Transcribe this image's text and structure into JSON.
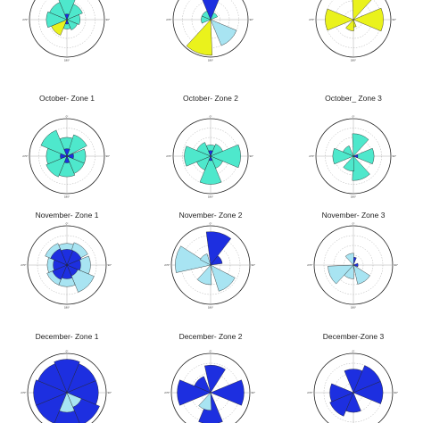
{
  "colors": {
    "teal": "#4ee8cc",
    "yellow": "#eaf21c",
    "light_blue": "#a8e4f2",
    "dark_blue": "#1d2fe0",
    "outline": "#222222",
    "grid": "#9a9a9a"
  },
  "direction_labels": {
    "north": "0°",
    "east": "90°",
    "south": "180°",
    "west": "270°"
  },
  "chart_data": [
    {
      "type": "rose",
      "title": "",
      "bins": [
        {
          "dir": 0,
          "r": 0.95,
          "color": "teal"
        },
        {
          "dir": 45,
          "r": 0.45,
          "color": "teal"
        },
        {
          "dir": 90,
          "r": 0.35,
          "color": "teal"
        },
        {
          "dir": 135,
          "r": 0.3,
          "color": "teal"
        },
        {
          "dir": 180,
          "r": 0.25,
          "color": "teal"
        },
        {
          "dir": 225,
          "r": 0.45,
          "color": "yellow"
        },
        {
          "dir": 270,
          "r": 0.55,
          "color": "teal"
        },
        {
          "dir": 315,
          "r": 0.5,
          "color": "teal"
        },
        {
          "dir": 0,
          "r": 0.15,
          "color": "dark_blue"
        },
        {
          "dir": 180,
          "r": 0.12,
          "color": "dark_blue"
        }
      ]
    },
    {
      "type": "rose",
      "title": "",
      "bins": [
        {
          "dir": 0,
          "r": 0.9,
          "color": "dark_blue"
        },
        {
          "dir": 45,
          "r": 0.2,
          "color": "teal"
        },
        {
          "dir": 135,
          "r": 0.75,
          "color": "light_blue"
        },
        {
          "dir": 200,
          "r": 0.95,
          "color": "yellow"
        },
        {
          "dir": 270,
          "r": 0.25,
          "color": "teal"
        },
        {
          "dir": 315,
          "r": 0.25,
          "color": "teal"
        }
      ]
    },
    {
      "type": "rose",
      "title": "",
      "bins": [
        {
          "dir": 20,
          "r": 0.95,
          "color": "yellow"
        },
        {
          "dir": 90,
          "r": 0.8,
          "color": "yellow"
        },
        {
          "dir": 180,
          "r": 0.2,
          "color": "yellow"
        },
        {
          "dir": 200,
          "r": 0.3,
          "color": "yellow"
        },
        {
          "dir": 270,
          "r": 0.75,
          "color": "yellow"
        }
      ]
    },
    {
      "type": "rose",
      "title": "October- Zone 1",
      "bins": [
        {
          "dir": 0,
          "r": 0.5,
          "color": "teal"
        },
        {
          "dir": 40,
          "r": 0.6,
          "color": "teal"
        },
        {
          "dir": 90,
          "r": 0.5,
          "color": "teal"
        },
        {
          "dir": 135,
          "r": 0.5,
          "color": "teal"
        },
        {
          "dir": 180,
          "r": 0.55,
          "color": "teal"
        },
        {
          "dir": 225,
          "r": 0.6,
          "color": "teal"
        },
        {
          "dir": 270,
          "r": 0.55,
          "color": "teal"
        },
        {
          "dir": 315,
          "r": 0.75,
          "color": "teal"
        },
        {
          "dir": 0,
          "r": 0.2,
          "color": "dark_blue"
        },
        {
          "dir": 90,
          "r": 0.18,
          "color": "dark_blue"
        },
        {
          "dir": 180,
          "r": 0.18,
          "color": "dark_blue"
        },
        {
          "dir": 270,
          "r": 0.18,
          "color": "dark_blue"
        }
      ]
    },
    {
      "type": "rose",
      "title": "October- Zone 2",
      "bins": [
        {
          "dir": 0,
          "r": 0.3,
          "color": "teal"
        },
        {
          "dir": 45,
          "r": 0.35,
          "color": "teal"
        },
        {
          "dir": 90,
          "r": 0.8,
          "color": "teal"
        },
        {
          "dir": 135,
          "r": 0.35,
          "color": "teal"
        },
        {
          "dir": 180,
          "r": 0.75,
          "color": "teal"
        },
        {
          "dir": 225,
          "r": 0.4,
          "color": "teal"
        },
        {
          "dir": 270,
          "r": 0.7,
          "color": "teal"
        },
        {
          "dir": 315,
          "r": 0.4,
          "color": "teal"
        },
        {
          "dir": 0,
          "r": 0.15,
          "color": "dark_blue"
        },
        {
          "dir": 180,
          "r": 0.12,
          "color": "dark_blue"
        }
      ]
    },
    {
      "type": "rose",
      "title": "October_ Zone 3",
      "bins": [
        {
          "dir": 20,
          "r": 0.6,
          "color": "teal"
        },
        {
          "dir": 90,
          "r": 0.55,
          "color": "teal"
        },
        {
          "dir": 160,
          "r": 0.65,
          "color": "teal"
        },
        {
          "dir": 200,
          "r": 0.4,
          "color": "teal"
        },
        {
          "dir": 270,
          "r": 0.55,
          "color": "teal"
        },
        {
          "dir": 315,
          "r": 0.3,
          "color": "teal"
        },
        {
          "dir": 90,
          "r": 0.12,
          "color": "dark_blue"
        }
      ]
    },
    {
      "type": "rose",
      "title": "November- Zone 1",
      "bins": [
        {
          "dir": 0,
          "r": 0.55,
          "color": "light_blue"
        },
        {
          "dir": 40,
          "r": 0.6,
          "color": "light_blue"
        },
        {
          "dir": 90,
          "r": 0.6,
          "color": "light_blue"
        },
        {
          "dir": 135,
          "r": 0.75,
          "color": "light_blue"
        },
        {
          "dir": 180,
          "r": 0.55,
          "color": "light_blue"
        },
        {
          "dir": 225,
          "r": 0.55,
          "color": "light_blue"
        },
        {
          "dir": 270,
          "r": 0.5,
          "color": "light_blue"
        },
        {
          "dir": 315,
          "r": 0.6,
          "color": "light_blue"
        },
        {
          "dir": 0,
          "r": 0.4,
          "color": "dark_blue"
        },
        {
          "dir": 45,
          "r": 0.4,
          "color": "dark_blue"
        },
        {
          "dir": 90,
          "r": 0.35,
          "color": "dark_blue"
        },
        {
          "dir": 135,
          "r": 0.3,
          "color": "dark_blue"
        },
        {
          "dir": 180,
          "r": 0.35,
          "color": "dark_blue"
        },
        {
          "dir": 225,
          "r": 0.4,
          "color": "dark_blue"
        },
        {
          "dir": 270,
          "r": 0.35,
          "color": "dark_blue"
        },
        {
          "dir": 315,
          "r": 0.45,
          "color": "dark_blue"
        }
      ]
    },
    {
      "type": "rose",
      "title": "November- Zone 2",
      "bins": [
        {
          "dir": 15,
          "r": 0.85,
          "color": "dark_blue"
        },
        {
          "dir": 60,
          "r": 0.3,
          "color": "dark_blue"
        },
        {
          "dir": 140,
          "r": 0.7,
          "color": "light_blue"
        },
        {
          "dir": 200,
          "r": 0.5,
          "color": "light_blue"
        },
        {
          "dir": 280,
          "r": 0.9,
          "color": "light_blue"
        },
        {
          "dir": 320,
          "r": 0.3,
          "color": "light_blue"
        }
      ]
    },
    {
      "type": "rose",
      "title": "November- Zone 3",
      "bins": [
        {
          "dir": 0,
          "r": 0.2,
          "color": "dark_blue"
        },
        {
          "dir": 90,
          "r": 0.12,
          "color": "dark_blue"
        },
        {
          "dir": 145,
          "r": 0.5,
          "color": "light_blue"
        },
        {
          "dir": 200,
          "r": 0.35,
          "color": "light_blue"
        },
        {
          "dir": 245,
          "r": 0.65,
          "color": "light_blue"
        },
        {
          "dir": 340,
          "r": 0.3,
          "color": "light_blue"
        }
      ]
    },
    {
      "type": "rose",
      "title": "December- Zone 1",
      "bins": [
        {
          "dir": 0,
          "r": 0.85,
          "color": "dark_blue"
        },
        {
          "dir": 45,
          "r": 0.8,
          "color": "dark_blue"
        },
        {
          "dir": 90,
          "r": 0.8,
          "color": "dark_blue"
        },
        {
          "dir": 135,
          "r": 0.9,
          "color": "dark_blue"
        },
        {
          "dir": 180,
          "r": 0.95,
          "color": "dark_blue"
        },
        {
          "dir": 225,
          "r": 0.85,
          "color": "dark_blue"
        },
        {
          "dir": 270,
          "r": 0.85,
          "color": "dark_blue"
        },
        {
          "dir": 315,
          "r": 0.8,
          "color": "dark_blue"
        },
        {
          "dir": 180,
          "r": 0.5,
          "color": "light_blue"
        },
        {
          "dir": 135,
          "r": 0.4,
          "color": "light_blue"
        }
      ]
    },
    {
      "type": "rose",
      "title": "December- Zone 2",
      "bins": [
        {
          "dir": 10,
          "r": 0.7,
          "color": "dark_blue"
        },
        {
          "dir": 90,
          "r": 0.85,
          "color": "dark_blue"
        },
        {
          "dir": 180,
          "r": 0.8,
          "color": "dark_blue"
        },
        {
          "dir": 270,
          "r": 0.85,
          "color": "dark_blue"
        },
        {
          "dir": 315,
          "r": 0.45,
          "color": "dark_blue"
        },
        {
          "dir": 200,
          "r": 0.45,
          "color": "light_blue"
        }
      ]
    },
    {
      "type": "rose",
      "title": "December-Zone 3",
      "bins": [
        {
          "dir": 0,
          "r": 0.6,
          "color": "dark_blue"
        },
        {
          "dir": 45,
          "r": 0.75,
          "color": "dark_blue"
        },
        {
          "dir": 90,
          "r": 0.75,
          "color": "dark_blue"
        },
        {
          "dir": 180,
          "r": 0.5,
          "color": "dark_blue"
        },
        {
          "dir": 225,
          "r": 0.65,
          "color": "dark_blue"
        },
        {
          "dir": 270,
          "r": 0.6,
          "color": "dark_blue"
        }
      ]
    }
  ]
}
